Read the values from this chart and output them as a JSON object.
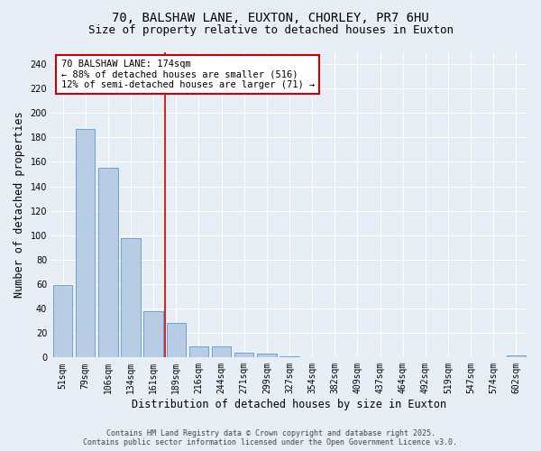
{
  "title_line1": "70, BALSHAW LANE, EUXTON, CHORLEY, PR7 6HU",
  "title_line2": "Size of property relative to detached houses in Euxton",
  "xlabel": "Distribution of detached houses by size in Euxton",
  "ylabel": "Number of detached properties",
  "categories": [
    "51sqm",
    "79sqm",
    "106sqm",
    "134sqm",
    "161sqm",
    "189sqm",
    "216sqm",
    "244sqm",
    "271sqm",
    "299sqm",
    "327sqm",
    "354sqm",
    "382sqm",
    "409sqm",
    "437sqm",
    "464sqm",
    "492sqm",
    "519sqm",
    "547sqm",
    "574sqm",
    "602sqm"
  ],
  "values": [
    59,
    187,
    155,
    98,
    38,
    28,
    9,
    9,
    4,
    3,
    1,
    0,
    0,
    0,
    0,
    0,
    0,
    0,
    0,
    0,
    2
  ],
  "bar_color": "#b8cce4",
  "bar_edge_color": "#5b9bd5",
  "red_line_x": 4.5,
  "annotation_text": "70 BALSHAW LANE: 174sqm\n← 88% of detached houses are smaller (516)\n12% of semi-detached houses are larger (71) →",
  "annotation_box_color": "#ffffff",
  "annotation_box_edge": "#cc0000",
  "red_line_color": "#cc0000",
  "ylim": [
    0,
    250
  ],
  "yticks": [
    0,
    20,
    40,
    60,
    80,
    100,
    120,
    140,
    160,
    180,
    200,
    220,
    240
  ],
  "background_color": "#e8eef5",
  "grid_color": "#ffffff",
  "footer_line1": "Contains HM Land Registry data © Crown copyright and database right 2025.",
  "footer_line2": "Contains public sector information licensed under the Open Government Licence v3.0.",
  "title_fontsize": 10,
  "subtitle_fontsize": 9,
  "axis_label_fontsize": 8.5,
  "tick_fontsize": 7,
  "annotation_fontsize": 7.5,
  "footer_fontsize": 6
}
